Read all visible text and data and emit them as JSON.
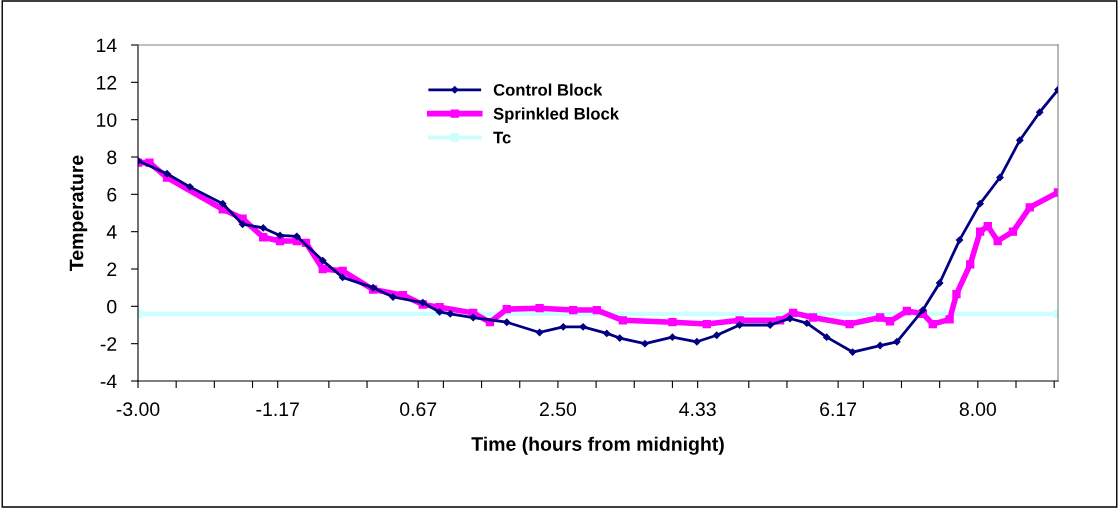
{
  "chart_data": {
    "type": "line",
    "xlabel": "Time (hours from midnight)",
    "ylabel": "Temperature",
    "xlim": [
      -3.0,
      9.05
    ],
    "ylim": [
      -4,
      14
    ],
    "yticks": [
      -4,
      -2,
      0,
      2,
      4,
      6,
      8,
      10,
      12,
      14
    ],
    "xticks": [
      {
        "value": -3.0,
        "label": "-3.00"
      },
      {
        "value": -2.5,
        "label": null
      },
      {
        "value": -2.0,
        "label": null
      },
      {
        "value": -1.5,
        "label": null
      },
      {
        "value": -1.17,
        "label": "-1.17"
      },
      {
        "value": -0.5,
        "label": null
      },
      {
        "value": 0.0,
        "label": null
      },
      {
        "value": 0.67,
        "label": "0.67"
      },
      {
        "value": 1.0,
        "label": null
      },
      {
        "value": 1.5,
        "label": null
      },
      {
        "value": 2.0,
        "label": null
      },
      {
        "value": 2.5,
        "label": "2.50"
      },
      {
        "value": 3.0,
        "label": null
      },
      {
        "value": 3.5,
        "label": null
      },
      {
        "value": 4.0,
        "label": null
      },
      {
        "value": 4.33,
        "label": "4.33"
      },
      {
        "value": 5.0,
        "label": null
      },
      {
        "value": 5.5,
        "label": null
      },
      {
        "value": 6.17,
        "label": "6.17"
      },
      {
        "value": 6.5,
        "label": null
      },
      {
        "value": 7.0,
        "label": null
      },
      {
        "value": 7.5,
        "label": null
      },
      {
        "value": 8.0,
        "label": "8.00"
      },
      {
        "value": 8.5,
        "label": null
      },
      {
        "value": 9.0,
        "label": null
      }
    ],
    "grid": false,
    "legend": "top",
    "line_style": "solid",
    "series": [
      {
        "name": "Control Block",
        "color": "#000080",
        "marker": "diamond",
        "x": [
          -3.0,
          -2.62,
          -2.32,
          -1.89,
          -1.63,
          -1.36,
          -1.14,
          -0.92,
          -0.58,
          -0.32,
          0.08,
          0.34,
          0.73,
          0.95,
          1.09,
          1.39,
          1.83,
          2.26,
          2.57,
          2.83,
          3.14,
          3.31,
          3.64,
          4.0,
          4.32,
          4.58,
          4.88,
          5.28,
          5.54,
          5.76,
          6.02,
          6.36,
          6.72,
          6.94,
          7.28,
          7.5,
          7.76,
          8.03,
          8.29,
          8.55,
          8.81,
          9.05
        ],
        "values": [
          7.8,
          7.1,
          6.4,
          5.5,
          4.4,
          4.2,
          3.8,
          3.75,
          2.45,
          1.55,
          1.0,
          0.5,
          0.2,
          -0.3,
          -0.4,
          -0.6,
          -0.85,
          -1.4,
          -1.1,
          -1.1,
          -1.45,
          -1.7,
          -2.0,
          -1.65,
          -1.9,
          -1.55,
          -1.0,
          -1.0,
          -0.65,
          -0.9,
          -1.65,
          -2.45,
          -2.1,
          -1.9,
          -0.2,
          1.25,
          3.55,
          5.5,
          6.9,
          8.9,
          10.4,
          11.6
        ]
      },
      {
        "name": "Sprinkled Block",
        "color": "#ff00ff",
        "marker": "square",
        "x": [
          -3.0,
          -2.85,
          -2.62,
          -1.89,
          -1.63,
          -1.36,
          -1.14,
          -0.92,
          -0.8,
          -0.58,
          -0.32,
          0.08,
          0.47,
          0.73,
          0.95,
          1.39,
          1.61,
          1.83,
          2.26,
          2.7,
          3.01,
          3.35,
          4.0,
          4.45,
          4.88,
          5.41,
          5.58,
          5.84,
          6.32,
          6.72,
          6.85,
          7.07,
          7.28,
          7.41,
          7.63,
          7.72,
          7.9,
          8.03,
          8.13,
          8.26,
          8.46,
          8.68,
          9.05
        ],
        "values": [
          7.7,
          7.7,
          6.9,
          5.2,
          4.7,
          3.7,
          3.5,
          3.5,
          3.4,
          2.0,
          1.9,
          0.9,
          0.6,
          0.1,
          -0.05,
          -0.35,
          -0.85,
          -0.15,
          -0.1,
          -0.2,
          -0.2,
          -0.75,
          -0.85,
          -0.95,
          -0.75,
          -0.75,
          -0.35,
          -0.6,
          -0.95,
          -0.6,
          -0.8,
          -0.25,
          -0.4,
          -0.95,
          -0.7,
          0.65,
          2.25,
          4.0,
          4.3,
          3.5,
          4.0,
          5.3,
          6.1
        ]
      },
      {
        "name": "Tc",
        "color": "#ccffff",
        "marker": "square",
        "x": [
          -3.0,
          9.05
        ],
        "values": [
          -0.4,
          -0.4
        ]
      }
    ]
  }
}
